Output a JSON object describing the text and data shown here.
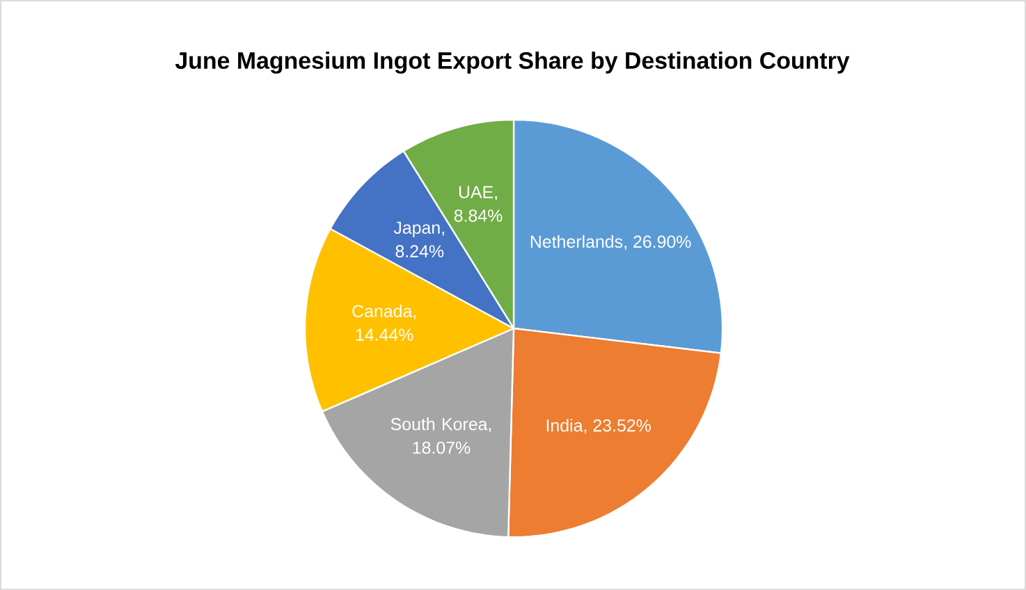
{
  "chart_data": {
    "type": "pie",
    "title": "June Magnesium Ingot Export Share by Destination Country",
    "categories": [
      "Netherlands",
      "India",
      "South Korea",
      "Canada",
      "Japan",
      "UAE"
    ],
    "values": [
      26.9,
      23.52,
      18.07,
      14.44,
      8.24,
      8.84
    ],
    "value_labels": [
      ", 26.90%",
      ", 23.52%",
      ", 18.07%",
      ", 14.44%",
      ", 8.24%",
      ", 8.84%"
    ],
    "colors": [
      "#5b9bd5",
      "#ed7d31",
      "#a5a5a5",
      "#ffc000",
      "#4472c4",
      "#70ad47"
    ]
  }
}
